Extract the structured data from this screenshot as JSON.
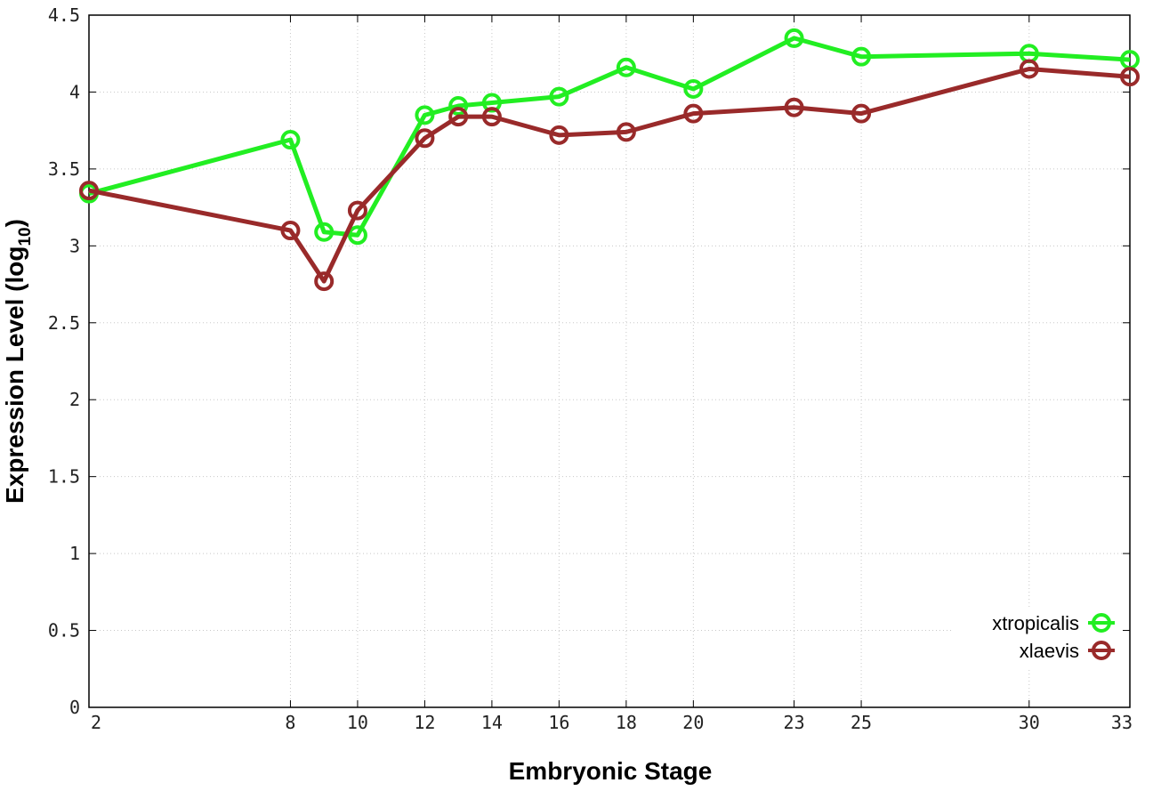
{
  "chart_data": {
    "type": "line",
    "xlabel": "Embryonic Stage",
    "ylabel": "Expression Level (log",
    "ylabel_subscript": "10",
    "ylabel_close": ")",
    "xlim": [
      2,
      33
    ],
    "ylim": [
      0,
      4.5
    ],
    "grid": true,
    "legend_position": "bottom-right",
    "x_ticks": [
      2,
      8,
      10,
      12,
      14,
      16,
      18,
      20,
      23,
      25,
      30,
      33
    ],
    "x_tick_labels": [
      "2",
      "8",
      "10",
      "12",
      "14",
      "16",
      "18",
      "20",
      "23",
      "25",
      "30",
      "33"
    ],
    "y_ticks": [
      0,
      0.5,
      1,
      1.5,
      2,
      2.5,
      3,
      3.5,
      4,
      4.5
    ],
    "y_tick_labels": [
      "0",
      "0.5",
      "1",
      "1.5",
      "2",
      "2.5",
      "3",
      "3.5",
      "4",
      "4.5"
    ],
    "x": [
      2,
      8,
      9,
      10,
      12,
      13,
      14,
      16,
      18,
      20,
      23,
      25,
      30,
      33
    ],
    "series": [
      {
        "name": "xtropicalis",
        "color": "#22ee22",
        "values": [
          3.34,
          3.69,
          3.09,
          3.07,
          3.85,
          3.91,
          3.93,
          3.97,
          4.16,
          4.02,
          4.35,
          4.23,
          4.25,
          4.21
        ]
      },
      {
        "name": "xlaevis",
        "color": "#992a2a",
        "values": [
          3.36,
          3.1,
          2.77,
          3.23,
          3.7,
          3.84,
          3.84,
          3.72,
          3.74,
          3.86,
          3.9,
          3.86,
          4.15,
          4.1
        ]
      }
    ]
  }
}
